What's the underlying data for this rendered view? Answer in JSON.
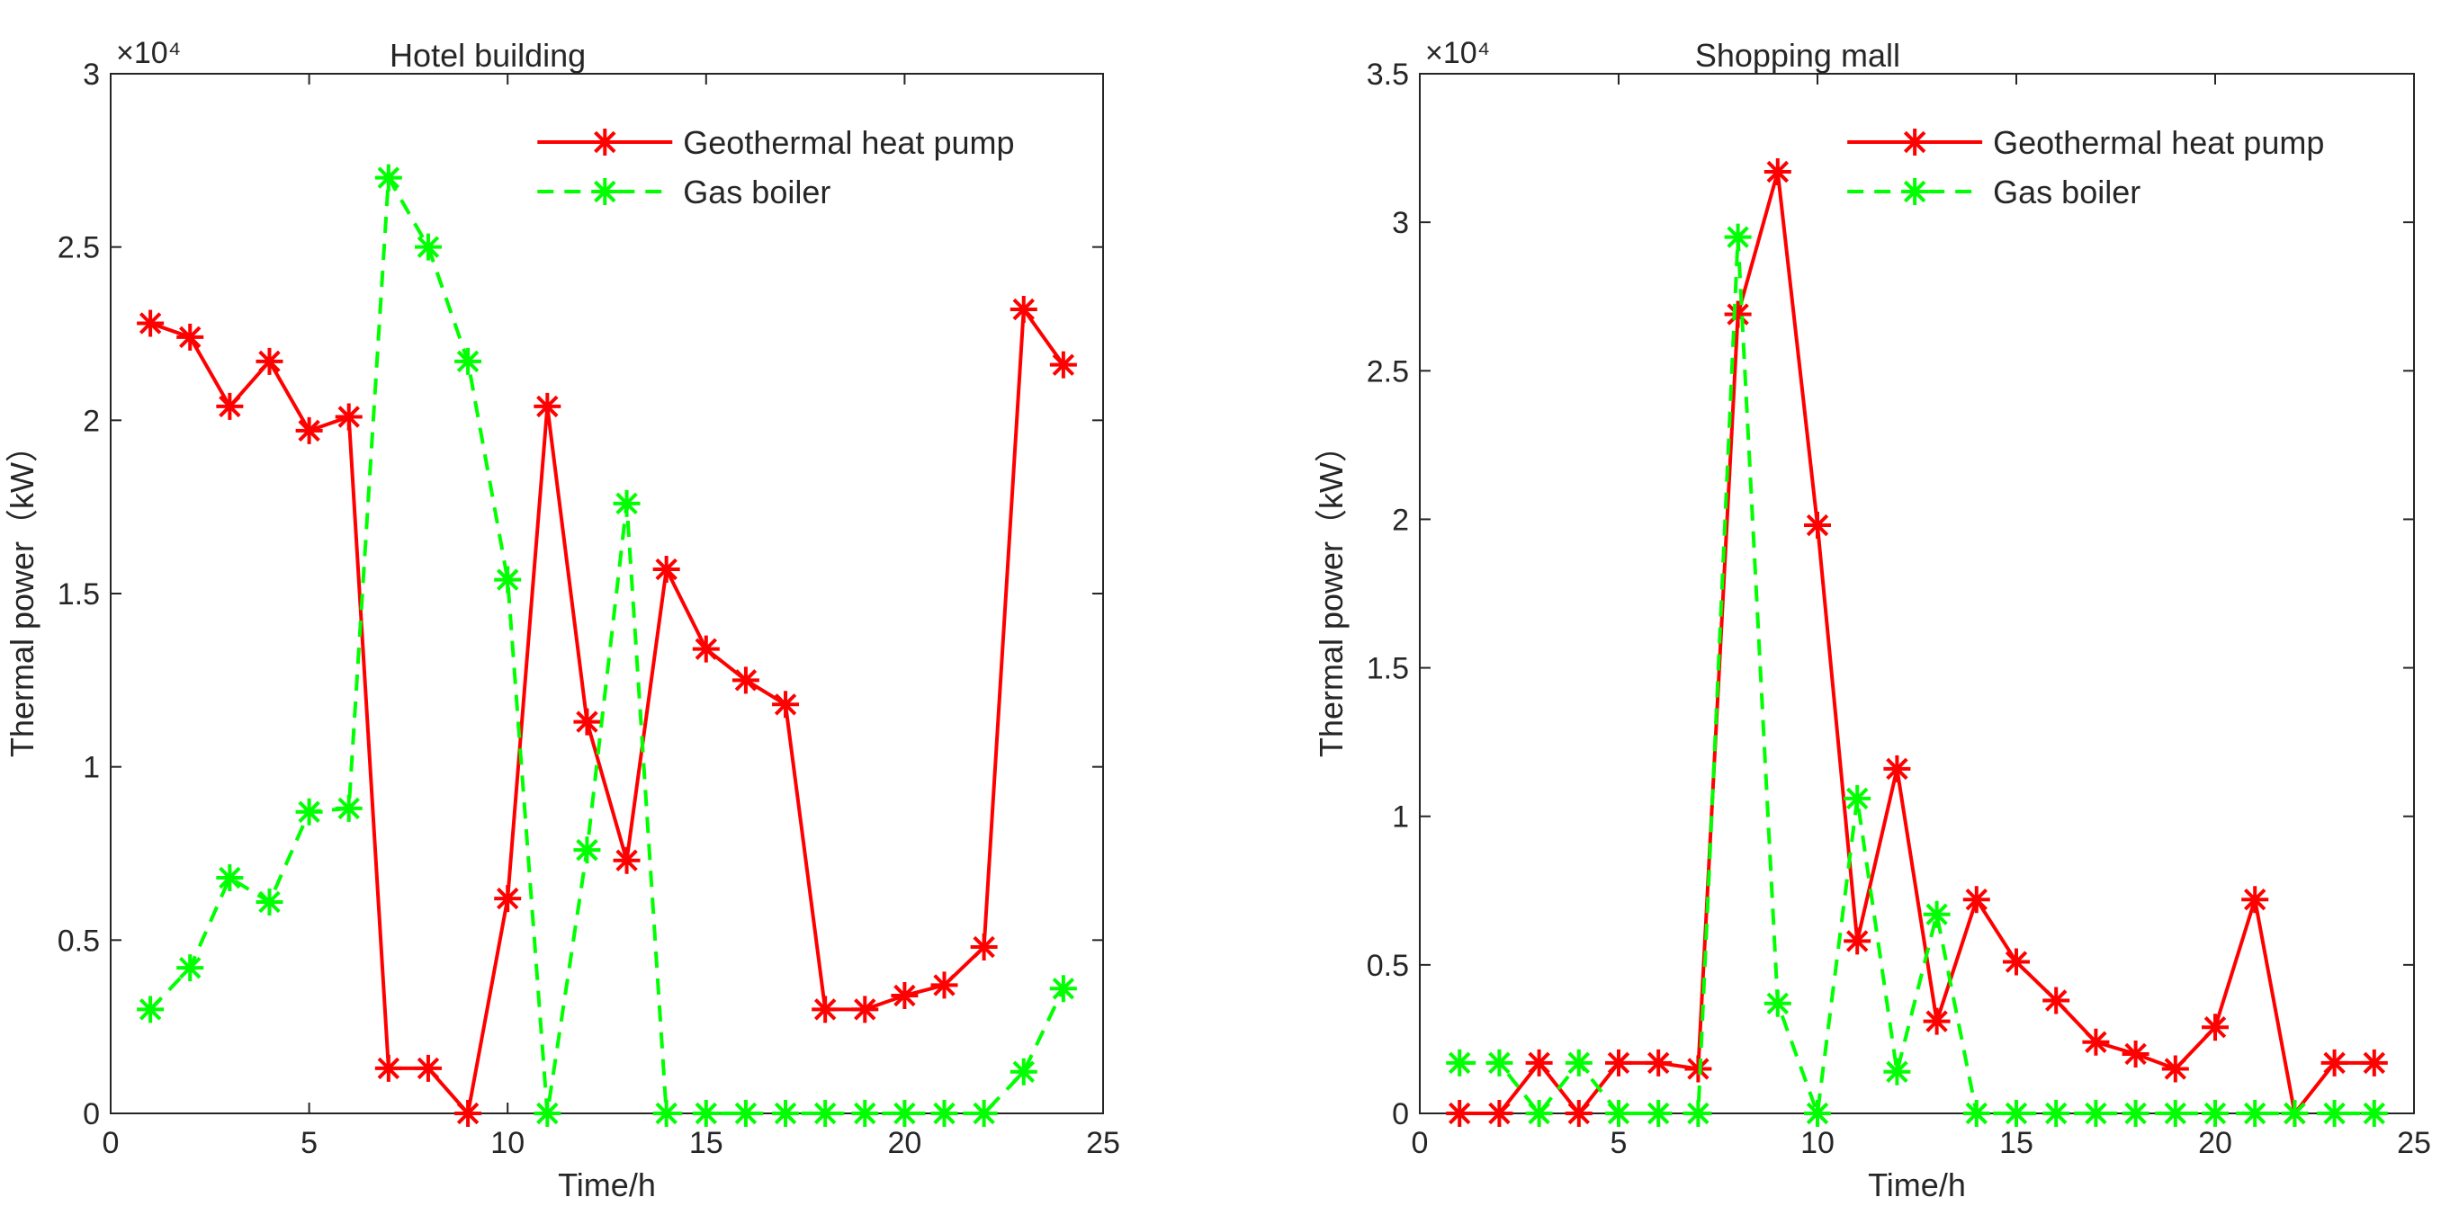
{
  "chart_data": [
    {
      "type": "line",
      "title": "Hotel building",
      "xlabel": "Time/h",
      "ylabel": "Thermal power（kW）",
      "exponent_label": "×10⁴",
      "xlim": [
        0,
        25
      ],
      "ylim": [
        0,
        3
      ],
      "xticks": [
        0,
        5,
        10,
        15,
        20,
        25
      ],
      "yticks": [
        0,
        0.5,
        1,
        1.5,
        2,
        2.5,
        3
      ],
      "xtick_labels": [
        "0",
        "5",
        "10",
        "15",
        "20",
        "25"
      ],
      "ytick_labels": [
        "0",
        "0.5",
        "1",
        "1.5",
        "2",
        "2.5",
        "3"
      ],
      "legend_position": "top-right",
      "x": [
        1,
        2,
        3,
        4,
        5,
        6,
        7,
        8,
        9,
        10,
        11,
        12,
        13,
        14,
        15,
        16,
        17,
        18,
        19,
        20,
        21,
        22,
        23,
        24
      ],
      "series": [
        {
          "name": "Geothermal heat pump",
          "color": "#ff0000",
          "style": "solid",
          "values": [
            2.28,
            2.24,
            2.04,
            2.17,
            1.97,
            2.01,
            0.13,
            0.13,
            0.0,
            0.62,
            2.04,
            1.13,
            0.73,
            1.57,
            1.34,
            1.25,
            1.18,
            0.3,
            0.3,
            0.34,
            0.37,
            0.48,
            2.32,
            2.16
          ]
        },
        {
          "name": "Gas boiler",
          "color": "#00ff00",
          "style": "dashed",
          "values": [
            0.3,
            0.42,
            0.68,
            0.61,
            0.87,
            0.88,
            2.7,
            2.5,
            2.17,
            1.54,
            0.0,
            0.76,
            1.76,
            0.0,
            0.0,
            0.0,
            0.0,
            0.0,
            0.0,
            0.0,
            0.0,
            0.0,
            0.12,
            0.36
          ]
        }
      ]
    },
    {
      "type": "line",
      "title": "Shopping mall",
      "xlabel": "Time/h",
      "ylabel": "Thermal power（kW）",
      "exponent_label": "×10⁴",
      "xlim": [
        0,
        25
      ],
      "ylim": [
        0,
        3.5
      ],
      "xticks": [
        0,
        5,
        10,
        15,
        20,
        25
      ],
      "yticks": [
        0,
        0.5,
        1,
        1.5,
        2,
        2.5,
        3,
        3.5
      ],
      "xtick_labels": [
        "0",
        "5",
        "10",
        "15",
        "20",
        "25"
      ],
      "ytick_labels": [
        "0",
        "0.5",
        "1",
        "1.5",
        "2",
        "2.5",
        "3",
        "3.5"
      ],
      "legend_position": "top-right",
      "x": [
        1,
        2,
        3,
        4,
        5,
        6,
        7,
        8,
        9,
        10,
        11,
        12,
        13,
        14,
        15,
        16,
        17,
        18,
        19,
        20,
        21,
        22,
        23,
        24
      ],
      "series": [
        {
          "name": "Geothermal heat pump",
          "color": "#ff0000",
          "style": "solid",
          "values": [
            0.0,
            0.0,
            0.17,
            0.0,
            0.17,
            0.17,
            0.15,
            2.69,
            3.17,
            1.98,
            0.58,
            1.16,
            0.31,
            0.72,
            0.51,
            0.38,
            0.24,
            0.2,
            0.15,
            0.29,
            0.72,
            0.0,
            0.17,
            0.17
          ]
        },
        {
          "name": "Gas boiler",
          "color": "#00ff00",
          "style": "dashed",
          "values": [
            0.17,
            0.17,
            0.0,
            0.17,
            0.0,
            0.0,
            0.0,
            2.95,
            0.37,
            0.0,
            1.06,
            0.14,
            0.67,
            0.0,
            0.0,
            0.0,
            0.0,
            0.0,
            0.0,
            0.0,
            0.0,
            0.0,
            0.0,
            0.0
          ]
        }
      ]
    }
  ]
}
